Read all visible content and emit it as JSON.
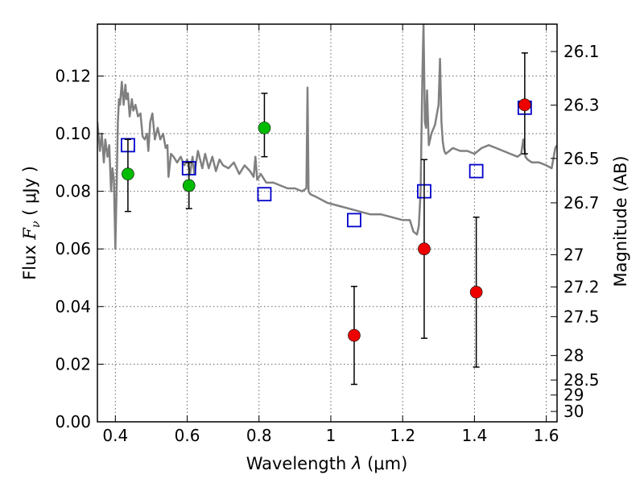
{
  "chart_data": {
    "type": "scatter",
    "xlabel": {
      "prefix": "Wavelength  ",
      "symbol": "λ",
      "unit": " (μm)"
    },
    "ylabel": {
      "prefix": "Flux  ",
      "symbol": "F",
      "sub": "ν",
      "unit": "  ( μJy )"
    },
    "y2label": "Magnitude (AB)",
    "xlim": [
      0.35,
      1.63
    ],
    "ylim": [
      0.0,
      0.138
    ],
    "xticks": [
      0.4,
      0.6,
      0.8,
      1.0,
      1.2,
      1.4,
      1.6
    ],
    "xtick_labels": [
      "0.4",
      "0.6",
      "0.8",
      "1",
      "1.2",
      "1.4",
      "1.6"
    ],
    "yticks": [
      0.0,
      0.02,
      0.04,
      0.06,
      0.08,
      0.1,
      0.12
    ],
    "ytick_labels": [
      "0.00",
      "0.02",
      "0.04",
      "0.06",
      "0.08",
      "0.10",
      "0.12"
    ],
    "y2ticks": [
      {
        "flux": 0.1285,
        "label": "26.1"
      },
      {
        "flux": 0.1099,
        "label": "26.3"
      },
      {
        "flux": 0.0914,
        "label": "26.5"
      },
      {
        "flux": 0.076,
        "label": "26.7"
      },
      {
        "flux": 0.058,
        "label": "27"
      },
      {
        "flux": 0.0468,
        "label": "27.2"
      },
      {
        "flux": 0.0365,
        "label": "27.5"
      },
      {
        "flux": 0.023,
        "label": "28"
      },
      {
        "flux": 0.0145,
        "label": "28.5"
      },
      {
        "flux": 0.0093,
        "label": "29"
      },
      {
        "flux": 0.0036,
        "label": "30"
      }
    ],
    "grid": true,
    "colors": {
      "spectrum": "#808080",
      "model": "#0000cc",
      "green": "#00bb00",
      "red": "#ee0000",
      "errorbar": "#000000"
    },
    "spectrum": {
      "x": [
        0.35,
        0.357,
        0.362,
        0.368,
        0.372,
        0.378,
        0.383,
        0.388,
        0.392,
        0.396,
        0.4,
        0.404,
        0.407,
        0.41,
        0.413,
        0.418,
        0.423,
        0.428,
        0.431,
        0.435,
        0.44,
        0.446,
        0.45,
        0.456,
        0.463,
        0.47,
        0.476,
        0.482,
        0.488,
        0.492,
        0.497,
        0.503,
        0.51,
        0.518,
        0.525,
        0.533,
        0.54,
        0.545,
        0.548,
        0.555,
        0.562,
        0.572,
        0.582,
        0.592,
        0.6,
        0.608,
        0.615,
        0.62,
        0.63,
        0.642,
        0.65,
        0.66,
        0.67,
        0.68,
        0.69,
        0.7,
        0.715,
        0.73,
        0.745,
        0.76,
        0.775,
        0.785,
        0.79,
        0.795,
        0.805,
        0.82,
        0.84,
        0.86,
        0.88,
        0.9,
        0.92,
        0.932,
        0.935,
        0.938,
        0.943,
        0.96,
        0.99,
        1.02,
        1.05,
        1.08,
        1.11,
        1.14,
        1.17,
        1.2,
        1.22,
        1.23,
        1.24,
        1.245,
        1.25,
        1.255,
        1.258,
        1.262,
        1.265,
        1.268,
        1.273,
        1.28,
        1.29,
        1.3,
        1.304,
        1.308,
        1.312,
        1.316,
        1.32,
        1.33,
        1.34,
        1.36,
        1.38,
        1.4,
        1.42,
        1.44,
        1.46,
        1.48,
        1.5,
        1.52,
        1.53,
        1.536,
        1.542,
        1.548,
        1.56,
        1.58,
        1.6,
        1.615,
        1.625,
        1.63
      ],
      "y": [
        0.104,
        0.094,
        0.1,
        0.09,
        0.098,
        0.092,
        0.096,
        0.08,
        0.088,
        0.084,
        0.06,
        0.084,
        0.104,
        0.112,
        0.11,
        0.118,
        0.11,
        0.117,
        0.112,
        0.114,
        0.106,
        0.112,
        0.108,
        0.11,
        0.106,
        0.107,
        0.099,
        0.098,
        0.1,
        0.094,
        0.104,
        0.107,
        0.098,
        0.102,
        0.098,
        0.1,
        0.095,
        0.096,
        0.085,
        0.093,
        0.092,
        0.09,
        0.092,
        0.089,
        0.091,
        0.086,
        0.092,
        0.086,
        0.094,
        0.088,
        0.093,
        0.088,
        0.092,
        0.087,
        0.091,
        0.089,
        0.088,
        0.09,
        0.086,
        0.089,
        0.087,
        0.085,
        0.092,
        0.084,
        0.086,
        0.083,
        0.083,
        0.082,
        0.081,
        0.081,
        0.08,
        0.081,
        0.116,
        0.08,
        0.079,
        0.078,
        0.076,
        0.075,
        0.074,
        0.073,
        0.072,
        0.072,
        0.071,
        0.07,
        0.07,
        0.066,
        0.065,
        0.068,
        0.08,
        0.12,
        0.138,
        0.104,
        0.102,
        0.115,
        0.096,
        0.1,
        0.103,
        0.11,
        0.126,
        0.104,
        0.097,
        0.094,
        0.093,
        0.094,
        0.095,
        0.094,
        0.094,
        0.093,
        0.095,
        0.096,
        0.095,
        0.094,
        0.093,
        0.092,
        0.093,
        0.098,
        0.092,
        0.091,
        0.09,
        0.09,
        0.089,
        0.088,
        0.095,
        0.096
      ]
    },
    "model_points": [
      {
        "x": 0.435,
        "y": 0.096
      },
      {
        "x": 0.605,
        "y": 0.088
      },
      {
        "x": 0.815,
        "y": 0.079
      },
      {
        "x": 1.065,
        "y": 0.07
      },
      {
        "x": 1.26,
        "y": 0.08
      },
      {
        "x": 1.405,
        "y": 0.087
      },
      {
        "x": 1.54,
        "y": 0.109
      }
    ],
    "observed_green": [
      {
        "x": 0.435,
        "y": 0.086,
        "yerr_low": 0.073,
        "yerr_high": 0.098
      },
      {
        "x": 0.605,
        "y": 0.082,
        "yerr_low": 0.074,
        "yerr_high": 0.09
      },
      {
        "x": 0.815,
        "y": 0.102,
        "yerr_low": 0.092,
        "yerr_high": 0.114
      }
    ],
    "observed_red": [
      {
        "x": 1.065,
        "y": 0.03,
        "yerr_low": 0.013,
        "yerr_high": 0.047
      },
      {
        "x": 1.26,
        "y": 0.06,
        "yerr_low": 0.029,
        "yerr_high": 0.091
      },
      {
        "x": 1.405,
        "y": 0.045,
        "yerr_low": 0.019,
        "yerr_high": 0.071
      },
      {
        "x": 1.54,
        "y": 0.11,
        "yerr_low": 0.093,
        "yerr_high": 0.128
      }
    ]
  }
}
